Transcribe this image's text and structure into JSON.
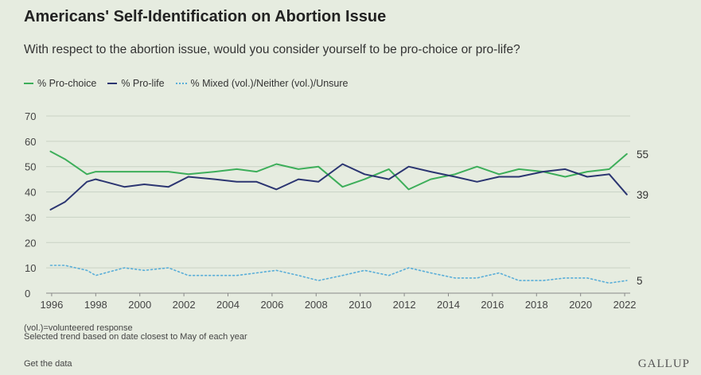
{
  "header": {
    "title": "Americans' Self-Identification on Abortion Issue",
    "subtitle": "With respect to the abortion issue, would you consider yourself to be pro-choice or pro-life?"
  },
  "footer": {
    "note1": "(vol.)=volunteered response",
    "note2": "Selected trend based on date closest to May of each year",
    "get_data": "Get the data",
    "brand": "GALLUP"
  },
  "colors": {
    "pro_choice": "#3dae5a",
    "pro_life": "#2b3571",
    "mixed": "#5aaed8",
    "grid": "#c9d2c4",
    "axis_text": "#444444"
  },
  "chart_data": {
    "type": "line",
    "title": "Americans' Self-Identification on Abortion Issue",
    "subtitle": "With respect to the abortion issue, would you consider yourself to be pro-choice or pro-life?",
    "xlabel": "",
    "ylabel": "",
    "xlim": [
      1995.75,
      2022.25
    ],
    "ylim": [
      0,
      70
    ],
    "y_ticks": [
      0,
      10,
      20,
      30,
      40,
      50,
      60,
      70
    ],
    "x_ticks": [
      "1996",
      "1998",
      "2000",
      "2002",
      "2004",
      "2006",
      "2008",
      "2010",
      "2012",
      "2014",
      "2016",
      "2018",
      "2020",
      "2022"
    ],
    "grid": true,
    "legend_position": "top-left",
    "x": [
      1995.95,
      1996.6,
      1997.6,
      1998.0,
      1999.3,
      2000.2,
      2001.3,
      2002.2,
      2003.4,
      2004.4,
      2005.3,
      2006.2,
      2007.2,
      2008.1,
      2009.2,
      2010.2,
      2011.3,
      2012.2,
      2013.2,
      2014.3,
      2015.3,
      2016.3,
      2017.2,
      2018.3,
      2019.3,
      2020.3,
      2021.3,
      2022.1
    ],
    "series": [
      {
        "name": "% Pro-choice",
        "style": "solid",
        "end_label": "55",
        "values": [
          56,
          53,
          47,
          48,
          48,
          48,
          48,
          47,
          48,
          49,
          48,
          51,
          49,
          50,
          42,
          45,
          49,
          41,
          45,
          47,
          50,
          47,
          49,
          48,
          46,
          48,
          49,
          55
        ]
      },
      {
        "name": "% Pro-life",
        "style": "solid",
        "end_label": "39",
        "values": [
          33,
          36,
          44,
          45,
          42,
          43,
          42,
          46,
          45,
          44,
          44,
          41,
          45,
          44,
          51,
          47,
          45,
          50,
          48,
          46,
          44,
          46,
          46,
          48,
          49,
          46,
          47,
          39
        ]
      },
      {
        "name": "% Mixed (vol.)/Neither (vol.)/Unsure",
        "style": "dotted",
        "end_label": "5",
        "values": [
          11,
          11,
          9,
          7,
          10,
          9,
          10,
          7,
          7,
          7,
          8,
          9,
          7,
          5,
          7,
          9,
          7,
          10,
          8,
          6,
          6,
          8,
          5,
          5,
          6,
          6,
          4,
          5
        ]
      }
    ]
  }
}
